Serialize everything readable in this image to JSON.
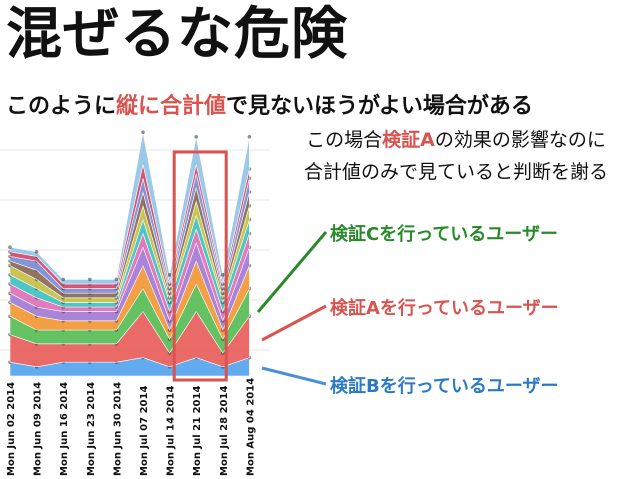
{
  "slide": {
    "title": "混ぜるな危険",
    "subtitle_pre": "このように",
    "subtitle_hl": "縦に合計値",
    "subtitle_post": "で見ないほうがよい場合がある",
    "note1_pre": "この場合",
    "note1_hl": "検証A",
    "note1_post": "の効果の影響なのに",
    "note2": "合計値のみで見ていると判断を謝る"
  },
  "annotations": [
    {
      "label": "検証Cを行っているユーザー",
      "color": "#2a8a2a"
    },
    {
      "label": "検証Aを行っているユーザー",
      "color": "#d9534f"
    },
    {
      "label": "検証Bを行っているユーザー",
      "color": "#4a90d9"
    }
  ],
  "colors": {
    "highlight_box": "#d9534f"
  },
  "chart_data": {
    "type": "area",
    "stacked": true,
    "categories": [
      "Mon Jun 02 2014",
      "Mon Jun 09 2014",
      "Mon Jun 16 2014",
      "Mon Jun 23 2014",
      "Mon Jun 30 2014",
      "Mon Jul 07 2014",
      "Mon Jul 14 2014",
      "Mon Jul 21 2014",
      "Mon Jul 28 2014",
      "Mon Aug 04 2014"
    ],
    "colors": [
      "#5aa7ef",
      "#e8635f",
      "#5cbf5a",
      "#f39a3c",
      "#a47fd6",
      "#e074b8",
      "#46c3c3",
      "#c7c14a",
      "#8e6c5a",
      "#7f8fd1",
      "#d24c6e",
      "#96c7e8"
    ],
    "series": [
      {
        "values": [
          3,
          2,
          3,
          3,
          3,
          4,
          2,
          4,
          2,
          4
        ]
      },
      {
        "values": [
          6,
          5,
          4,
          4,
          4,
          10,
          3,
          10,
          3,
          9
        ]
      },
      {
        "values": [
          4,
          3,
          3,
          3,
          3,
          5,
          3,
          6,
          3,
          6
        ]
      },
      {
        "values": [
          3,
          3,
          2,
          2,
          2,
          5,
          2,
          5,
          2,
          5
        ]
      },
      {
        "values": [
          2,
          2,
          2,
          2,
          2,
          4,
          2,
          4,
          2,
          4
        ]
      },
      {
        "values": [
          2,
          2,
          1,
          1,
          1,
          3,
          2,
          3,
          2,
          3
        ]
      },
      {
        "values": [
          2,
          2,
          1,
          1,
          1,
          3,
          2,
          3,
          2,
          3
        ]
      },
      {
        "values": [
          2,
          2,
          1,
          1,
          1,
          3,
          1,
          3,
          1,
          3
        ]
      },
      {
        "values": [
          1,
          2,
          1,
          1,
          1,
          3,
          1,
          3,
          1,
          3
        ]
      },
      {
        "values": [
          1,
          2,
          1,
          1,
          1,
          3,
          1,
          3,
          1,
          3
        ]
      },
      {
        "values": [
          1,
          1,
          1,
          1,
          1,
          3,
          1,
          2,
          1,
          2
        ]
      },
      {
        "values": [
          1,
          1,
          1,
          1,
          1,
          7,
          2,
          6,
          2,
          7
        ]
      }
    ],
    "highlight_category": "Mon Jul 21 2014"
  }
}
